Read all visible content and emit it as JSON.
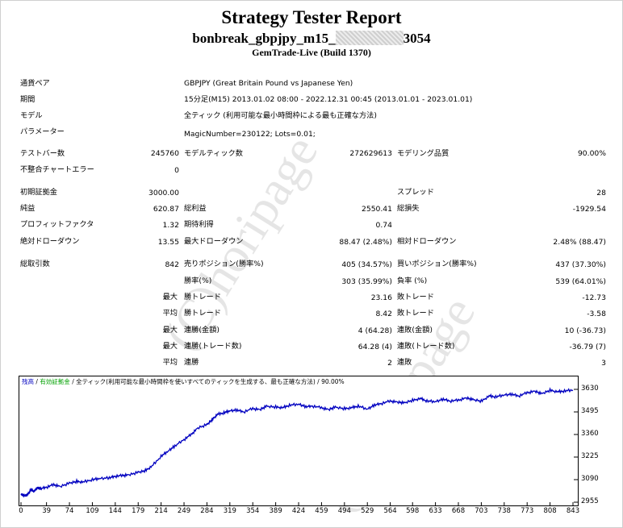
{
  "header": {
    "title": "Strategy Tester Report",
    "name_prefix": "bonbreak_gbpjpy_m15_",
    "name_suffix": "3054",
    "build": "GemTrade-Live (Build 1370)"
  },
  "watermark": "(C)horipage",
  "info": {
    "symbol_label": "通貨ペア",
    "symbol_value": "GBPJPY (Great Britain Pound vs Japanese Yen)",
    "period_label": "期間",
    "period_value": "15分足(M15) 2013.01.02 08:00 - 2022.12.31 00:45 (2013.01.01 - 2023.01.01)",
    "model_label": "モデル",
    "model_value": "全ティック (利用可能な最小時間枠による最も正確な方法)",
    "params_label": "パラメーター",
    "params_value": "MagicNumber=230122; Lots=0.01;"
  },
  "stats": {
    "bars_label": "テストバー数",
    "bars_value": "245760",
    "ticks_label": "モデルティック数",
    "ticks_value": "272629613",
    "quality_label": "モデリング品質",
    "quality_value": "90.00%",
    "mismatch_label": "不整合チャートエラー",
    "mismatch_value": "0",
    "deposit_label": "初期証拠金",
    "deposit_value": "3000.00",
    "spread_label": "スプレッド",
    "spread_value": "28",
    "netprofit_label": "純益",
    "netprofit_value": "620.87",
    "grossprofit_label": "総利益",
    "grossprofit_value": "2550.41",
    "grossloss_label": "総損失",
    "grossloss_value": "-1929.54",
    "pf_label": "プロフィットファクタ",
    "pf_value": "1.32",
    "expected_label": "期待利得",
    "expected_value": "0.74",
    "absdd_label": "絶対ドローダウン",
    "absdd_value": "13.55",
    "maxdd_label": "最大ドローダウン",
    "maxdd_value": "88.47 (2.48%)",
    "reldd_label": "相対ドローダウン",
    "reldd_value": "2.48% (88.47)",
    "trades_label": "総取引数",
    "trades_value": "842",
    "short_label": "売りポジション(勝率%)",
    "short_value": "405 (34.57%)",
    "long_label": "買いポジション(勝率%)",
    "long_value": "437 (37.30%)",
    "winrate_label": "勝率(%)",
    "winrate_value": "303 (35.99%)",
    "lossrate_label": "負率 (%)",
    "lossrate_value": "539 (64.01%)",
    "max_label": "最大",
    "avg_label": "平均",
    "largest_win_label": "勝トレード",
    "largest_win_value": "23.16",
    "largest_loss_label": "敗トレード",
    "largest_loss_value": "-12.73",
    "avg_win_label": "勝トレード",
    "avg_win_value": "8.42",
    "avg_loss_label": "敗トレード",
    "avg_loss_value": "-3.58",
    "consec_wins_money_label": "連勝(金額)",
    "consec_wins_money_value": "4 (64.28)",
    "consec_loss_money_label": "連敗(金額)",
    "consec_loss_money_value": "10 (-36.73)",
    "consec_wins_count_label": "連勝(トレード数)",
    "consec_wins_count_value": "64.28 (4)",
    "consec_loss_count_label": "連敗(トレード数)",
    "consec_loss_count_value": "-36.79 (7)",
    "avg_consec_wins_label": "連勝",
    "avg_consec_wins_value": "2",
    "avg_consec_loss_label": "連敗",
    "avg_consec_loss_value": "3"
  },
  "chart_legend": {
    "balance": "残高",
    "equity": "有効証拠金",
    "model": "全ティック(利用可能な最小時間枠を使いすべてのティックを生成する、最も正確な方法)",
    "quality": "90.00%",
    "balance_color": "#0000c0",
    "equity_color": "#00a000"
  },
  "chart_data": {
    "type": "line",
    "y_ticks": [
      "3630",
      "3495",
      "3360",
      "3225",
      "3090",
      "2955"
    ],
    "x_ticks": [
      "0",
      "39",
      "74",
      "109",
      "144",
      "179",
      "214",
      "249",
      "284",
      "319",
      "354",
      "389",
      "424",
      "459",
      "494",
      "529",
      "564",
      "598",
      "633",
      "668",
      "703",
      "738",
      "773",
      "808",
      "843"
    ],
    "ylim": [
      2955,
      3630
    ],
    "xlim": [
      0,
      843
    ],
    "series": [
      {
        "name": "残高",
        "color": "#0000c0",
        "x": [
          0,
          5,
          10,
          15,
          20,
          25,
          30,
          39,
          50,
          60,
          74,
          85,
          95,
          109,
          120,
          135,
          144,
          155,
          165,
          179,
          190,
          200,
          214,
          225,
          235,
          249,
          260,
          270,
          284,
          292,
          300,
          310,
          319,
          330,
          340,
          354,
          365,
          375,
          389,
          400,
          410,
          424,
          435,
          445,
          459,
          470,
          480,
          494,
          505,
          515,
          529,
          540,
          550,
          564,
          575,
          585,
          598,
          610,
          620,
          633,
          645,
          655,
          668,
          680,
          690,
          703,
          715,
          725,
          738,
          750,
          760,
          773,
          785,
          795,
          808,
          820,
          830,
          843
        ],
        "values": [
          3005,
          2995,
          3000,
          3030,
          3020,
          3040,
          3035,
          3045,
          3060,
          3050,
          3070,
          3080,
          3075,
          3090,
          3095,
          3100,
          3110,
          3115,
          3120,
          3135,
          3145,
          3170,
          3230,
          3260,
          3290,
          3330,
          3360,
          3400,
          3420,
          3450,
          3480,
          3490,
          3500,
          3505,
          3495,
          3515,
          3510,
          3530,
          3525,
          3520,
          3535,
          3540,
          3525,
          3530,
          3520,
          3510,
          3525,
          3515,
          3520,
          3530,
          3510,
          3535,
          3545,
          3560,
          3555,
          3550,
          3565,
          3575,
          3560,
          3555,
          3570,
          3560,
          3565,
          3580,
          3570,
          3560,
          3590,
          3585,
          3595,
          3600,
          3590,
          3610,
          3620,
          3605,
          3625,
          3615,
          3620,
          3625
        ]
      }
    ]
  }
}
